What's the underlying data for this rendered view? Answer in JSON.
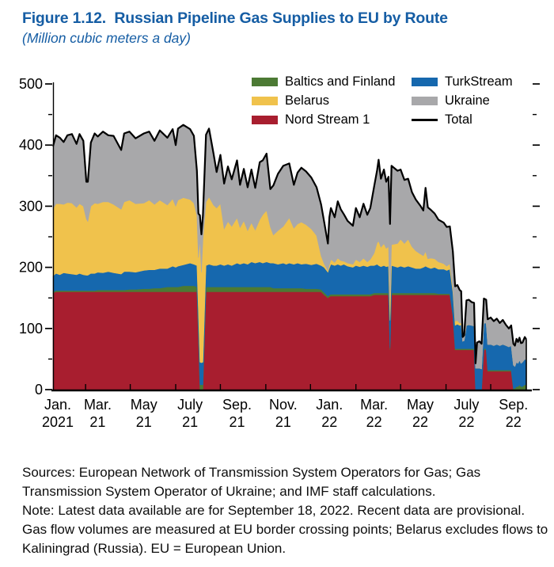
{
  "header": {
    "title": "Figure 1.12.  Russian Pipeline Gas Supplies to EU by Route",
    "subtitle": "(Million cubic meters a day)"
  },
  "footer": {
    "sources": "Sources: European Network of Transmission System Operators for Gas; Gas Transmission System Operator of Ukraine; and IMF staff calculations.",
    "note": "Note: Latest data available are for September 18, 2022. Recent data are provisional. Gas flow volumes are measured at EU border crossing points; Belarus excludes flows to Kaliningrad (Russia). EU = European Union."
  },
  "colors": {
    "title_blue": "#155da4",
    "nord_stream_1": "#a81e2f",
    "baltics_finland": "#4c7a34",
    "turkstream": "#1668ae",
    "belarus": "#f0c24c",
    "ukraine": "#a8a8aa",
    "total_line": "#000000",
    "axis": "#000000"
  },
  "chart_data": {
    "type": "area",
    "stacked": true,
    "title": "Russian Pipeline Gas Supplies to EU by Route",
    "ylabel": "Million cubic meters a day",
    "xlabel": "",
    "grid": false,
    "legend_position": "top-right, two columns",
    "x_unit": "days since 2021-01-01",
    "x_range": [
      0,
      625
    ],
    "y_range": [
      0,
      500
    ],
    "y_major_ticks": [
      0,
      100,
      200,
      300,
      400,
      500
    ],
    "y_minor_ticks": [
      50,
      150,
      250,
      350,
      450
    ],
    "x_minor_tick_days": [
      43,
      102,
      162,
      221,
      281,
      340,
      400,
      459,
      519,
      578
    ],
    "x_ticks": [
      {
        "day": 0,
        "line1": "Jan.",
        "line2": "2021"
      },
      {
        "day": 59,
        "line1": "Mar.",
        "line2": "21"
      },
      {
        "day": 120,
        "line1": "May",
        "line2": "21"
      },
      {
        "day": 181,
        "line1": "July",
        "line2": "21"
      },
      {
        "day": 243,
        "line1": "Sep.",
        "line2": "21"
      },
      {
        "day": 304,
        "line1": "Nov.",
        "line2": "21"
      },
      {
        "day": 365,
        "line1": "Jan.",
        "line2": "22"
      },
      {
        "day": 424,
        "line1": "Mar.",
        "line2": "22"
      },
      {
        "day": 485,
        "line1": "May",
        "line2": "22"
      },
      {
        "day": 546,
        "line1": "July",
        "line2": "22"
      },
      {
        "day": 608,
        "line1": "Sep.",
        "line2": "22"
      }
    ],
    "series": [
      {
        "name": "Nord Stream 1",
        "color": "#a81e2f",
        "col": 1
      },
      {
        "name": "Baltics and Finland",
        "color": "#4c7a34",
        "col": 2
      },
      {
        "name": "TurkStream",
        "color": "#1668ae",
        "col": 3
      },
      {
        "name": "Belarus",
        "color": "#f0c24c",
        "col": 4
      },
      {
        "name": "Ukraine",
        "color": "#a8a8aa",
        "col": 5
      }
    ],
    "total": {
      "name": "Total",
      "color": "#000000"
    },
    "legend": [
      {
        "label": "Baltics and Finland",
        "color": "#4c7a34",
        "swatch": "box"
      },
      {
        "label": "TurkStream",
        "color": "#1668ae",
        "swatch": "box"
      },
      {
        "label": "Belarus",
        "color": "#f0c24c",
        "swatch": "box"
      },
      {
        "label": "Ukraine",
        "color": "#a8a8aa",
        "swatch": "box"
      },
      {
        "label": "Nord Stream 1",
        "color": "#a81e2f",
        "swatch": "box"
      },
      {
        "label": "Total",
        "color": "#000000",
        "swatch": "line"
      }
    ],
    "points_format": [
      "day",
      "Nord Stream 1",
      "Baltics and Finland",
      "TurkStream",
      "Belarus",
      "Ukraine"
    ],
    "points": [
      [
        0,
        158,
        2,
        26,
        110,
        102
      ],
      [
        4,
        160,
        2,
        28,
        114,
        112
      ],
      [
        9,
        160,
        2,
        26,
        116,
        108
      ],
      [
        14,
        160,
        2,
        29,
        112,
        102
      ],
      [
        19,
        160,
        2,
        28,
        116,
        110
      ],
      [
        25,
        160,
        2,
        27,
        116,
        113
      ],
      [
        31,
        160,
        2,
        26,
        110,
        104
      ],
      [
        35,
        160,
        2,
        28,
        114,
        114
      ],
      [
        40,
        160,
        2,
        26,
        112,
        107
      ],
      [
        44,
        160,
        2,
        25,
        92,
        61
      ],
      [
        46,
        160,
        2,
        25,
        88,
        65
      ],
      [
        50,
        160,
        2,
        28,
        110,
        104
      ],
      [
        55,
        160,
        2,
        28,
        115,
        114
      ],
      [
        59,
        160,
        3,
        29,
        112,
        110
      ],
      [
        66,
        160,
        3,
        28,
        116,
        115
      ],
      [
        73,
        160,
        3,
        30,
        114,
        109
      ],
      [
        80,
        160,
        3,
        28,
        112,
        112
      ],
      [
        90,
        160,
        3,
        26,
        106,
        97
      ],
      [
        94,
        160,
        3,
        30,
        114,
        112
      ],
      [
        101,
        160,
        4,
        29,
        117,
        112
      ],
      [
        109,
        160,
        4,
        28,
        112,
        107
      ],
      [
        120,
        160,
        5,
        30,
        110,
        114
      ],
      [
        127,
        160,
        5,
        31,
        114,
        112
      ],
      [
        134,
        160,
        6,
        30,
        107,
        104
      ],
      [
        141,
        160,
        6,
        32,
        112,
        114
      ],
      [
        151,
        160,
        8,
        30,
        104,
        110
      ],
      [
        158,
        160,
        8,
        34,
        110,
        114
      ],
      [
        162,
        160,
        8,
        32,
        100,
        100
      ],
      [
        165,
        160,
        8,
        34,
        108,
        117
      ],
      [
        172,
        160,
        10,
        34,
        110,
        119
      ],
      [
        181,
        160,
        10,
        37,
        104,
        115
      ],
      [
        186,
        160,
        10,
        35,
        100,
        110
      ],
      [
        190,
        160,
        8,
        35,
        82,
        73
      ],
      [
        192,
        85,
        8,
        35,
        88,
        72
      ],
      [
        194,
        0,
        8,
        37,
        200,
        40
      ],
      [
        196,
        0,
        8,
        36,
        148,
        62
      ],
      [
        198,
        0,
        8,
        37,
        200,
        40
      ],
      [
        202,
        160,
        8,
        35,
        104,
        110
      ],
      [
        206,
        160,
        8,
        37,
        110,
        112
      ],
      [
        212,
        160,
        8,
        35,
        99,
        84
      ],
      [
        216,
        160,
        8,
        35,
        94,
        59
      ],
      [
        221,
        160,
        8,
        37,
        99,
        80
      ],
      [
        226,
        160,
        8,
        35,
        60,
        74
      ],
      [
        231,
        160,
        8,
        37,
        70,
        90
      ],
      [
        236,
        160,
        8,
        35,
        64,
        77
      ],
      [
        243,
        160,
        8,
        39,
        74,
        94
      ],
      [
        247,
        160,
        8,
        37,
        60,
        70
      ],
      [
        252,
        160,
        8,
        39,
        69,
        85
      ],
      [
        257,
        160,
        8,
        37,
        55,
        71
      ],
      [
        262,
        160,
        8,
        41,
        64,
        87
      ],
      [
        267,
        160,
        8,
        39,
        54,
        69
      ],
      [
        273,
        160,
        8,
        41,
        69,
        94
      ],
      [
        277,
        160,
        8,
        39,
        79,
        89
      ],
      [
        282,
        160,
        8,
        41,
        84,
        93
      ],
      [
        287,
        160,
        8,
        39,
        59,
        62
      ],
      [
        291,
        160,
        6,
        41,
        46,
        81
      ],
      [
        297,
        160,
        6,
        39,
        55,
        93
      ],
      [
        304,
        160,
        6,
        41,
        60,
        99
      ],
      [
        308,
        160,
        6,
        39,
        69,
        94
      ],
      [
        312,
        160,
        6,
        41,
        74,
        89
      ],
      [
        318,
        160,
        6,
        39,
        59,
        71
      ],
      [
        323,
        160,
        6,
        41,
        64,
        84
      ],
      [
        328,
        160,
        6,
        39,
        69,
        89
      ],
      [
        334,
        160,
        5,
        41,
        64,
        87
      ],
      [
        341,
        160,
        5,
        39,
        59,
        84
      ],
      [
        348,
        160,
        5,
        41,
        46,
        79
      ],
      [
        354,
        160,
        4,
        39,
        16,
        84
      ],
      [
        358,
        155,
        4,
        41,
        6,
        69
      ],
      [
        363,
        150,
        3,
        39,
        3,
        44
      ],
      [
        365,
        152,
        3,
        44,
        5,
        78
      ],
      [
        367,
        153,
        3,
        49,
        8,
        84
      ],
      [
        372,
        153,
        3,
        47,
        5,
        74
      ],
      [
        376,
        153,
        3,
        49,
        10,
        93
      ],
      [
        380,
        153,
        3,
        47,
        8,
        84
      ],
      [
        384,
        153,
        3,
        49,
        5,
        77
      ],
      [
        389,
        153,
        3,
        46,
        5,
        69
      ],
      [
        396,
        153,
        3,
        44,
        5,
        63
      ],
      [
        400,
        153,
        3,
        47,
        10,
        84
      ],
      [
        405,
        153,
        3,
        45,
        8,
        73
      ],
      [
        410,
        153,
        3,
        47,
        12,
        89
      ],
      [
        415,
        153,
        3,
        45,
        8,
        77
      ],
      [
        419,
        153,
        3,
        47,
        10,
        84
      ],
      [
        424,
        155,
        3,
        45,
        20,
        109
      ],
      [
        428,
        155,
        3,
        47,
        35,
        119
      ],
      [
        430,
        155,
        3,
        45,
        40,
        133
      ],
      [
        433,
        155,
        3,
        43,
        32,
        112
      ],
      [
        437,
        155,
        3,
        45,
        36,
        121
      ],
      [
        440,
        155,
        3,
        43,
        30,
        109
      ],
      [
        443,
        155,
        3,
        44,
        32,
        114
      ],
      [
        445,
        65,
        3,
        45,
        34,
        124
      ],
      [
        447,
        155,
        3,
        45,
        34,
        129
      ],
      [
        455,
        155,
        3,
        42,
        39,
        119
      ],
      [
        459,
        155,
        3,
        44,
        44,
        114
      ],
      [
        464,
        155,
        3,
        42,
        39,
        104
      ],
      [
        469,
        155,
        3,
        44,
        44,
        99
      ],
      [
        474,
        155,
        3,
        42,
        34,
        89
      ],
      [
        479,
        155,
        3,
        40,
        29,
        84
      ],
      [
        485,
        155,
        3,
        40,
        24,
        79
      ],
      [
        489,
        155,
        3,
        42,
        19,
        74
      ],
      [
        492,
        155,
        3,
        44,
        24,
        104
      ],
      [
        495,
        155,
        3,
        42,
        14,
        84
      ],
      [
        499,
        155,
        3,
        40,
        17,
        79
      ],
      [
        504,
        155,
        3,
        42,
        14,
        74
      ],
      [
        509,
        155,
        2,
        40,
        12,
        69
      ],
      [
        516,
        155,
        2,
        40,
        9,
        67
      ],
      [
        520,
        155,
        2,
        38,
        7,
        64
      ],
      [
        524,
        155,
        2,
        40,
        9,
        61
      ],
      [
        528,
        120,
        2,
        38,
        7,
        59
      ],
      [
        531,
        65,
        2,
        38,
        7,
        57
      ],
      [
        534,
        65,
        2,
        40,
        6,
        58
      ],
      [
        537,
        65,
        2,
        38,
        4,
        54
      ],
      [
        539,
        65,
        2,
        39,
        3,
        52
      ],
      [
        541,
        65,
        2,
        12,
        0,
        7
      ],
      [
        543,
        65,
        2,
        13,
        0,
        9
      ],
      [
        546,
        65,
        2,
        38,
        1,
        40
      ],
      [
        549,
        65,
        2,
        39,
        0,
        41
      ],
      [
        553,
        65,
        2,
        38,
        0,
        38
      ],
      [
        556,
        65,
        2,
        37,
        0,
        38
      ],
      [
        558,
        0,
        0,
        35,
        0,
        8
      ],
      [
        560,
        0,
        0,
        35,
        0,
        42
      ],
      [
        563,
        0,
        0,
        35,
        0,
        44
      ],
      [
        566,
        0,
        0,
        34,
        0,
        41
      ],
      [
        569,
        65,
        2,
        42,
        0,
        40
      ],
      [
        572,
        65,
        2,
        42,
        0,
        38
      ],
      [
        574,
        30,
        2,
        42,
        0,
        41
      ],
      [
        578,
        30,
        2,
        42,
        0,
        44
      ],
      [
        582,
        30,
        2,
        40,
        0,
        40
      ],
      [
        586,
        30,
        2,
        42,
        0,
        42
      ],
      [
        590,
        30,
        2,
        40,
        0,
        37
      ],
      [
        594,
        30,
        2,
        42,
        0,
        40
      ],
      [
        598,
        30,
        2,
        40,
        0,
        34
      ],
      [
        602,
        30,
        2,
        38,
        0,
        30
      ],
      [
        605,
        30,
        2,
        40,
        0,
        33
      ],
      [
        608,
        0,
        2,
        38,
        0,
        35
      ],
      [
        610,
        0,
        2,
        36,
        0,
        34
      ],
      [
        612,
        0,
        5,
        40,
        0,
        38
      ],
      [
        614,
        0,
        5,
        38,
        0,
        35
      ],
      [
        616,
        0,
        8,
        40,
        0,
        37
      ],
      [
        618,
        0,
        5,
        38,
        0,
        33
      ],
      [
        620,
        0,
        5,
        40,
        0,
        32
      ],
      [
        623,
        0,
        8,
        42,
        0,
        36
      ],
      [
        625,
        0,
        8,
        40,
        0,
        34
      ]
    ]
  }
}
